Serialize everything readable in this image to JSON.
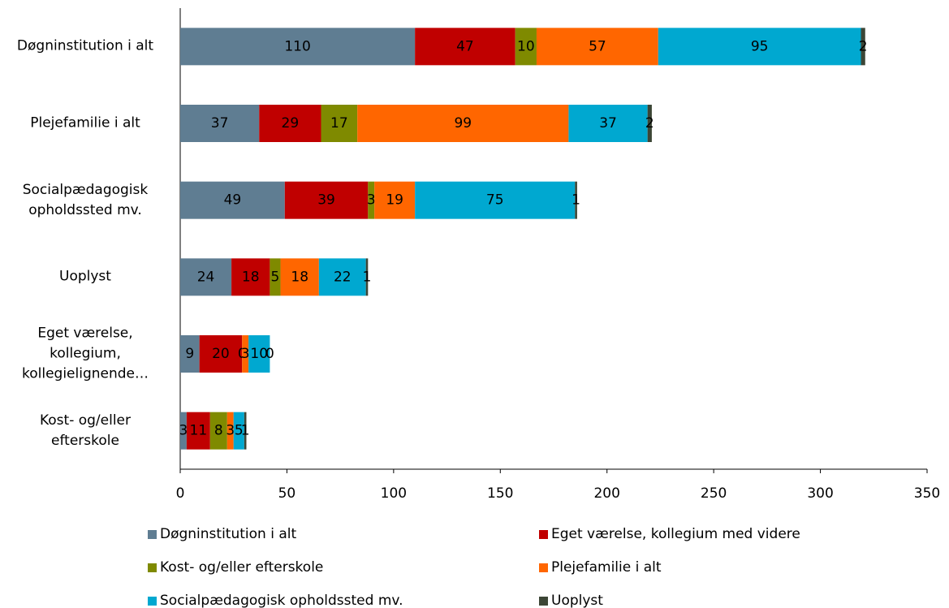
{
  "chart_data": {
    "type": "stacked-barh",
    "categories": [
      "Døgninstitution i alt",
      "Plejefamilie i alt",
      "Socialpædagogisk opholdssted mv.",
      "Uoplyst",
      "Eget værelse, kollegium, kollegielignende…",
      "Kost- og/eller efterskole"
    ],
    "series": [
      {
        "name": "Døgninstitution i alt",
        "color": "#5f7d92",
        "values": [
          110,
          37,
          49,
          24,
          9,
          3
        ]
      },
      {
        "name": "Eget værelse, kollegium med videre",
        "color": "#c00000",
        "values": [
          47,
          29,
          39,
          18,
          20,
          11
        ]
      },
      {
        "name": "Kost- og/eller efterskole",
        "color": "#7f8a00",
        "values": [
          10,
          17,
          3,
          5,
          0,
          8
        ]
      },
      {
        "name": "Plejefamilie i alt",
        "color": "#ff6600",
        "values": [
          57,
          99,
          19,
          18,
          3,
          3
        ]
      },
      {
        "name": "Socialpædagogisk opholdssted mv.",
        "color": "#00a8d0",
        "values": [
          95,
          37,
          75,
          22,
          10,
          5
        ]
      },
      {
        "name": "Uoplyst",
        "color": "#3c4636",
        "values": [
          2,
          2,
          1,
          1,
          0,
          1
        ]
      }
    ],
    "xlim": [
      0,
      350
    ],
    "xticks": [
      0,
      50,
      100,
      150,
      200,
      250,
      300,
      350
    ]
  }
}
